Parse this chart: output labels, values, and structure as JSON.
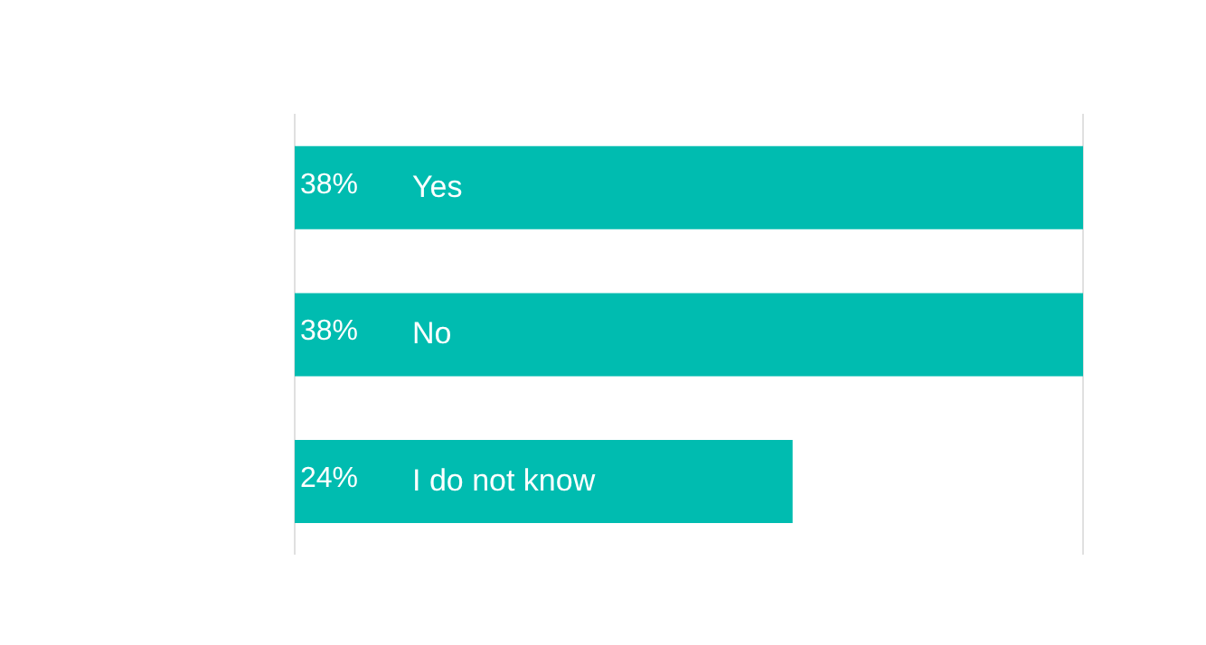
{
  "chart_data": {
    "type": "bar",
    "orientation": "horizontal",
    "categories": [
      "Yes",
      "No",
      "I do not know"
    ],
    "values": [
      38,
      38,
      24
    ],
    "color": "#00bcb0",
    "value_labels": [
      "38%",
      "38%",
      "24%"
    ],
    "xlim": [
      0,
      38
    ],
    "grid": "x"
  }
}
